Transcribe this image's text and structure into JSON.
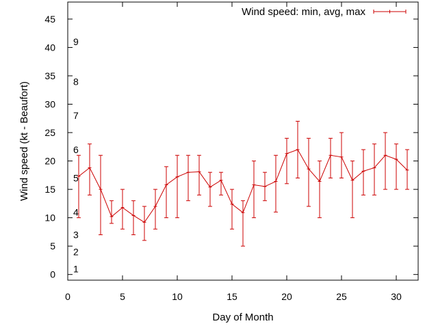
{
  "chart_data": {
    "type": "line",
    "xlabel": "Day of Month",
    "ylabel": "Wind speed (kt - Beaufort)",
    "xlim": [
      0,
      32
    ],
    "ylim": [
      -1,
      48
    ],
    "xticks": [
      0,
      5,
      10,
      15,
      20,
      25,
      30
    ],
    "yticks": [
      0,
      5,
      10,
      15,
      20,
      25,
      30,
      35,
      40,
      45
    ],
    "legend": {
      "label": "Wind speed: min, avg, max",
      "position": "top-right"
    },
    "series_color": "#cc0000",
    "beaufort_labels": [
      {
        "label": "1",
        "y": 1
      },
      {
        "label": "2",
        "y": 4
      },
      {
        "label": "3",
        "y": 7
      },
      {
        "label": "4",
        "y": 11
      },
      {
        "label": "5",
        "y": 17
      },
      {
        "label": "6",
        "y": 22
      },
      {
        "label": "7",
        "y": 28
      },
      {
        "label": "8",
        "y": 34
      },
      {
        "label": "9",
        "y": 41
      }
    ],
    "points": [
      {
        "x": 1,
        "avg": 17.3,
        "min": 10,
        "max": 21
      },
      {
        "x": 2,
        "avg": 18.8,
        "min": 14,
        "max": 23
      },
      {
        "x": 3,
        "avg": 15,
        "min": 7,
        "max": 21
      },
      {
        "x": 4,
        "avg": 10.2,
        "min": 9,
        "max": 13
      },
      {
        "x": 5,
        "avg": 11.8,
        "min": 8,
        "max": 15
      },
      {
        "x": 6,
        "avg": 10.4,
        "min": 7,
        "max": 13
      },
      {
        "x": 7,
        "avg": 9.2,
        "min": 6,
        "max": 12
      },
      {
        "x": 8,
        "avg": 12,
        "min": 8,
        "max": 15
      },
      {
        "x": 9,
        "avg": 15.8,
        "min": 10,
        "max": 19
      },
      {
        "x": 10,
        "avg": 17.2,
        "min": 10,
        "max": 21
      },
      {
        "x": 11,
        "avg": 18,
        "min": 13,
        "max": 21
      },
      {
        "x": 12,
        "avg": 18.1,
        "min": 14,
        "max": 21
      },
      {
        "x": 13,
        "avg": 15.4,
        "min": 12,
        "max": 18
      },
      {
        "x": 14,
        "avg": 16.6,
        "min": 14,
        "max": 18
      },
      {
        "x": 15,
        "avg": 12.4,
        "min": 8,
        "max": 15
      },
      {
        "x": 16,
        "avg": 10.9,
        "min": 5,
        "max": 13
      },
      {
        "x": 17,
        "avg": 15.8,
        "min": 10,
        "max": 20
      },
      {
        "x": 18,
        "avg": 15.5,
        "min": 13,
        "max": 18
      },
      {
        "x": 19,
        "avg": 16.4,
        "min": 11,
        "max": 21
      },
      {
        "x": 20,
        "avg": 21.3,
        "min": 16,
        "max": 24
      },
      {
        "x": 21,
        "avg": 22,
        "min": 17,
        "max": 27
      },
      {
        "x": 22,
        "avg": 18.6,
        "min": 12,
        "max": 24
      },
      {
        "x": 23,
        "avg": 16.4,
        "min": 10,
        "max": 20
      },
      {
        "x": 24,
        "avg": 21,
        "min": 17,
        "max": 24
      },
      {
        "x": 25,
        "avg": 20.7,
        "min": 17,
        "max": 25
      },
      {
        "x": 26,
        "avg": 16.6,
        "min": 10,
        "max": 20
      },
      {
        "x": 27,
        "avg": 18.2,
        "min": 14,
        "max": 22
      },
      {
        "x": 28,
        "avg": 18.8,
        "min": 14,
        "max": 23
      },
      {
        "x": 29,
        "avg": 21,
        "min": 15,
        "max": 25
      },
      {
        "x": 30,
        "avg": 20.3,
        "min": 15,
        "max": 23
      },
      {
        "x": 31,
        "avg": 18.4,
        "min": 15,
        "max": 22
      }
    ]
  }
}
